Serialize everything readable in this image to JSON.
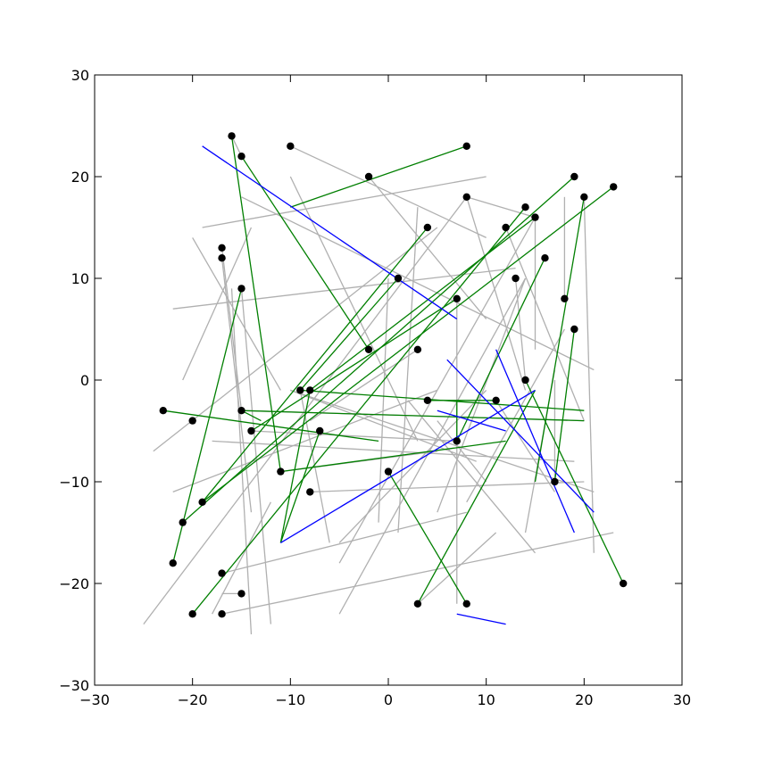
{
  "chart_data": {
    "type": "line",
    "xlim": [
      -30,
      30
    ],
    "ylim": [
      -30,
      30
    ],
    "grid": false,
    "legend": "none",
    "x_ticks": [
      "−30",
      "−20",
      "−10",
      "0",
      "10",
      "20",
      "30"
    ],
    "y_ticks": [
      "−30",
      "−20",
      "−10",
      "0",
      "10",
      "20",
      "30"
    ],
    "x_tick_values": [
      -30,
      -20,
      -10,
      0,
      10,
      20,
      30
    ],
    "y_tick_values": [
      -30,
      -20,
      -10,
      0,
      10,
      20,
      30
    ],
    "colors": {
      "gray": "#b0b0b0",
      "green": "#007f00",
      "blue": "#0000ff",
      "point": "#000000"
    },
    "gray_segments": [
      [
        [
          -16,
          24
        ],
        [
          -15,
          22
        ]
      ],
      [
        [
          -10,
          23
        ],
        [
          10,
          14
        ]
      ],
      [
        [
          -19,
          15
        ],
        [
          10,
          20
        ]
      ],
      [
        [
          -15,
          18
        ],
        [
          21,
          1
        ]
      ],
      [
        [
          -20,
          14
        ],
        [
          -11,
          -1
        ]
      ],
      [
        [
          -22,
          7
        ],
        [
          13,
          11
        ]
      ],
      [
        [
          -21,
          0
        ],
        [
          -14,
          15
        ]
      ],
      [
        [
          -17,
          13
        ],
        [
          -15,
          -3
        ]
      ],
      [
        [
          -17,
          12
        ],
        [
          -14,
          -13
        ]
      ],
      [
        [
          -15,
          9
        ],
        [
          -12,
          -24
        ]
      ],
      [
        [
          -14,
          -25
        ],
        [
          -16,
          9
        ]
      ],
      [
        [
          -10,
          20
        ],
        [
          3,
          -6
        ]
      ],
      [
        [
          -18,
          -23
        ],
        [
          -12,
          -12
        ]
      ],
      [
        [
          -25,
          -24
        ],
        [
          8,
          18
        ]
      ],
      [
        [
          -24,
          -7
        ],
        [
          5,
          15
        ]
      ],
      [
        [
          -22,
          -11
        ],
        [
          5,
          -1
        ]
      ],
      [
        [
          -18,
          -6
        ],
        [
          19,
          -8
        ]
      ],
      [
        [
          -15,
          -3
        ],
        [
          20,
          -4
        ]
      ],
      [
        [
          -10,
          -1
        ],
        [
          21,
          -11
        ]
      ],
      [
        [
          -5,
          -16
        ],
        [
          10,
          -1
        ]
      ],
      [
        [
          -5,
          -23
        ],
        [
          14,
          10
        ]
      ],
      [
        [
          2,
          -2
        ],
        [
          15,
          -17
        ]
      ],
      [
        [
          3,
          17
        ],
        [
          1,
          -15
        ]
      ],
      [
        [
          5,
          -13
        ],
        [
          14,
          10
        ]
      ],
      [
        [
          7,
          -22
        ],
        [
          7,
          8
        ]
      ],
      [
        [
          -8,
          -11
        ],
        [
          20,
          -10
        ]
      ],
      [
        [
          -17,
          -19
        ],
        [
          8,
          -13
        ]
      ],
      [
        [
          -17,
          -23
        ],
        [
          23,
          -15
        ]
      ],
      [
        [
          3,
          -22
        ],
        [
          11,
          -15
        ]
      ],
      [
        [
          8,
          18
        ],
        [
          14,
          -1
        ]
      ],
      [
        [
          8,
          18
        ],
        [
          15,
          16
        ]
      ],
      [
        [
          8,
          -12
        ],
        [
          18,
          5
        ]
      ],
      [
        [
          13,
          10
        ],
        [
          14,
          0
        ]
      ],
      [
        [
          14,
          -15
        ],
        [
          17,
          1
        ]
      ],
      [
        [
          15,
          16
        ],
        [
          15,
          3
        ]
      ],
      [
        [
          17,
          -10
        ],
        [
          17,
          0
        ]
      ],
      [
        [
          18,
          8
        ],
        [
          18,
          18
        ]
      ],
      [
        [
          -17,
          -21
        ],
        [
          -15,
          -21
        ]
      ],
      [
        [
          -2,
          20
        ],
        [
          10,
          6
        ]
      ],
      [
        [
          5,
          -4
        ],
        [
          10,
          -10
        ]
      ],
      [
        [
          -14,
          -5
        ],
        [
          7,
          -6
        ]
      ],
      [
        [
          -11,
          -9
        ],
        [
          5,
          -7
        ]
      ],
      [
        [
          20,
          18
        ],
        [
          21,
          -17
        ]
      ],
      [
        [
          -10,
          -1
        ],
        [
          9,
          -8
        ]
      ],
      [
        [
          -9,
          -1
        ],
        [
          -6,
          -16
        ]
      ],
      [
        [
          0,
          10
        ],
        [
          -1,
          -14
        ]
      ],
      [
        [
          15,
          16
        ],
        [
          -5,
          -18
        ]
      ],
      [
        [
          12,
          15
        ],
        [
          20,
          -4
        ]
      ],
      [
        [
          3,
          3
        ],
        [
          -8,
          -4
        ]
      ],
      [
        [
          11,
          -2
        ],
        [
          17,
          -11
        ]
      ]
    ],
    "green_segments": [
      [
        [
          -10,
          17
        ],
        [
          8,
          23
        ]
      ],
      [
        [
          -16,
          24
        ],
        [
          -11,
          -9
        ]
      ],
      [
        [
          -15,
          22
        ],
        [
          -2,
          3
        ]
      ],
      [
        [
          -8,
          -1
        ],
        [
          15,
          16
        ]
      ],
      [
        [
          -19,
          -12
        ],
        [
          4,
          15
        ]
      ],
      [
        [
          -19,
          -12
        ],
        [
          23,
          19
        ]
      ],
      [
        [
          -20,
          -23
        ],
        [
          14,
          17
        ]
      ],
      [
        [
          -21,
          -14
        ],
        [
          19,
          20
        ]
      ],
      [
        [
          -22,
          -18
        ],
        [
          -15,
          9
        ]
      ],
      [
        [
          -23,
          -3
        ],
        [
          -1,
          -6
        ]
      ],
      [
        [
          -15,
          -3
        ],
        [
          20,
          -4
        ]
      ],
      [
        [
          -14,
          -5
        ],
        [
          7,
          8
        ]
      ],
      [
        [
          -11,
          -16
        ],
        [
          -7,
          -5
        ]
      ],
      [
        [
          -11,
          -9
        ],
        [
          12,
          -6
        ]
      ],
      [
        [
          -9,
          -1
        ],
        [
          20,
          -3
        ]
      ],
      [
        [
          -8,
          -1
        ],
        [
          -11,
          -16
        ]
      ],
      [
        [
          0,
          -9
        ],
        [
          8,
          -22
        ]
      ],
      [
        [
          3,
          -22
        ],
        [
          15,
          -1
        ]
      ],
      [
        [
          7,
          -6
        ],
        [
          16,
          12
        ]
      ],
      [
        [
          15,
          -10
        ],
        [
          20,
          18
        ]
      ],
      [
        [
          17,
          -10
        ],
        [
          19,
          5
        ]
      ],
      [
        [
          14,
          0
        ],
        [
          24,
          -20
        ]
      ],
      [
        [
          -9,
          -1
        ],
        [
          1,
          10
        ]
      ],
      [
        [
          4,
          -2
        ],
        [
          11,
          -2
        ]
      ],
      [
        [
          7,
          -6
        ],
        [
          7,
          -2
        ]
      ],
      [
        [
          -15,
          -3
        ],
        [
          -13,
          -4
        ]
      ]
    ],
    "blue_segments": [
      [
        [
          -19,
          23
        ],
        [
          7,
          6
        ]
      ],
      [
        [
          -11,
          -16
        ],
        [
          15,
          -1
        ]
      ],
      [
        [
          6,
          2
        ],
        [
          21,
          -13
        ]
      ],
      [
        [
          11,
          3
        ],
        [
          19,
          -15
        ]
      ],
      [
        [
          7,
          -23
        ],
        [
          12,
          -24
        ]
      ],
      [
        [
          5,
          -3
        ],
        [
          12,
          -5
        ]
      ]
    ],
    "points": [
      [
        -16,
        24
      ],
      [
        -15,
        22
      ],
      [
        -10,
        23
      ],
      [
        8,
        23
      ],
      [
        -2,
        20
      ],
      [
        19,
        20
      ],
      [
        23,
        19
      ],
      [
        20,
        18
      ],
      [
        8,
        18
      ],
      [
        14,
        17
      ],
      [
        15,
        16
      ],
      [
        4,
        15
      ],
      [
        12,
        15
      ],
      [
        -17,
        13
      ],
      [
        -17,
        12
      ],
      [
        16,
        12
      ],
      [
        1,
        10
      ],
      [
        13,
        10
      ],
      [
        -15,
        9
      ],
      [
        7,
        8
      ],
      [
        18,
        8
      ],
      [
        19,
        5
      ],
      [
        -2,
        3
      ],
      [
        3,
        3
      ],
      [
        14,
        0
      ],
      [
        -9,
        -1
      ],
      [
        -8,
        -1
      ],
      [
        4,
        -2
      ],
      [
        11,
        -2
      ],
      [
        -23,
        -3
      ],
      [
        -15,
        -3
      ],
      [
        -20,
        -4
      ],
      [
        -14,
        -5
      ],
      [
        -7,
        -5
      ],
      [
        7,
        -6
      ],
      [
        -11,
        -9
      ],
      [
        0,
        -9
      ],
      [
        17,
        -10
      ],
      [
        -8,
        -11
      ],
      [
        -19,
        -12
      ],
      [
        -21,
        -14
      ],
      [
        -22,
        -18
      ],
      [
        -17,
        -19
      ],
      [
        24,
        -20
      ],
      [
        -15,
        -21
      ],
      [
        3,
        -22
      ],
      [
        8,
        -22
      ],
      [
        -20,
        -23
      ],
      [
        -17,
        -23
      ]
    ]
  }
}
